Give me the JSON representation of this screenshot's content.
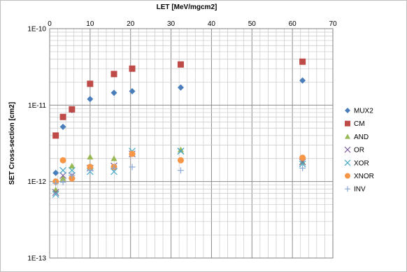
{
  "chart_data": {
    "type": "scatter",
    "xlabel": "LET [MeV/mgcm2]",
    "ylabel": "SET Cross-section [cm2]",
    "xlim": [
      0,
      70
    ],
    "ylim": [
      1e-13,
      1e-10
    ],
    "yscale": "log",
    "x_ticks": [
      "0",
      "10",
      "20",
      "30",
      "40",
      "50",
      "60",
      "70"
    ],
    "y_ticks": [
      "1E-10",
      "1E-11",
      "1E-12",
      "1E-13"
    ],
    "x_axis_position": "top",
    "grid": true,
    "legend_position": "right",
    "series": [
      {
        "name": "MUX2",
        "marker": "diamond",
        "color": "#4a7ebb",
        "points": [
          [
            1.5,
            1.3e-12
          ],
          [
            3.3,
            5.2e-12
          ],
          [
            5.5,
            8.6e-12
          ],
          [
            10,
            1.2e-11
          ],
          [
            15.9,
            1.45e-11
          ],
          [
            20.4,
            1.52e-11
          ],
          [
            32.4,
            1.7e-11
          ],
          [
            62.5,
            2.1e-11
          ]
        ]
      },
      {
        "name": "CM",
        "marker": "square",
        "color": "#be4b48",
        "points": [
          [
            1.5,
            4e-12
          ],
          [
            3.3,
            7e-12
          ],
          [
            5.5,
            8.8e-12
          ],
          [
            10,
            1.9e-11
          ],
          [
            15.9,
            2.55e-11
          ],
          [
            20.4,
            3e-11
          ],
          [
            32.4,
            3.4e-11
          ],
          [
            62.5,
            3.7e-11
          ]
        ]
      },
      {
        "name": "AND",
        "marker": "triangle",
        "color": "#98b954",
        "points": [
          [
            1.5,
            7.8e-13
          ],
          [
            3.3,
            1.1e-12
          ],
          [
            5.5,
            1.6e-12
          ],
          [
            10,
            2.1e-12
          ],
          [
            15.9,
            2e-12
          ],
          [
            20.4,
            2.3e-12
          ],
          [
            32.4,
            2.6e-12
          ],
          [
            62.5,
            1.8e-12
          ]
        ]
      },
      {
        "name": "OR",
        "marker": "x",
        "color": "#7d60a0",
        "points": [
          [
            1.5,
            7.2e-13
          ],
          [
            3.3,
            1.2e-12
          ],
          [
            5.5,
            1.2e-12
          ],
          [
            10,
            1.5e-12
          ],
          [
            15.9,
            1.6e-12
          ],
          [
            20.4,
            2.3e-12
          ],
          [
            32.4,
            2.5e-12
          ],
          [
            62.5,
            1.8e-12
          ]
        ]
      },
      {
        "name": "XOR",
        "marker": "x",
        "color": "#46aac5",
        "points": [
          [
            1.5,
            6.8e-13
          ],
          [
            3.3,
            1.4e-12
          ],
          [
            5.5,
            1.4e-12
          ],
          [
            10,
            1.35e-12
          ],
          [
            15.9,
            1.35e-12
          ],
          [
            20.4,
            2.5e-12
          ],
          [
            32.4,
            2.5e-12
          ],
          [
            62.5,
            1.7e-12
          ]
        ]
      },
      {
        "name": "XNOR",
        "marker": "circle",
        "color": "#f79646",
        "points": [
          [
            1.5,
            1e-12
          ],
          [
            3.3,
            1.9e-12
          ],
          [
            5.5,
            1.1e-12
          ],
          [
            10,
            1.55e-12
          ],
          [
            15.9,
            1.55e-12
          ],
          [
            20.4,
            2.3e-12
          ],
          [
            32.4,
            1.9e-12
          ],
          [
            62.5,
            2.05e-12
          ]
        ]
      },
      {
        "name": "INV",
        "marker": "plus",
        "color": "#8aa9d6",
        "points": [
          [
            1.5,
            9.5e-13
          ],
          [
            3.3,
            9.8e-13
          ],
          [
            5.5,
            1.2e-12
          ],
          [
            10,
            1.4e-12
          ],
          [
            15.9,
            1.5e-12
          ],
          [
            20.4,
            1.55e-12
          ],
          [
            32.4,
            1.4e-12
          ],
          [
            62.5,
            1.5e-12
          ]
        ]
      }
    ]
  }
}
